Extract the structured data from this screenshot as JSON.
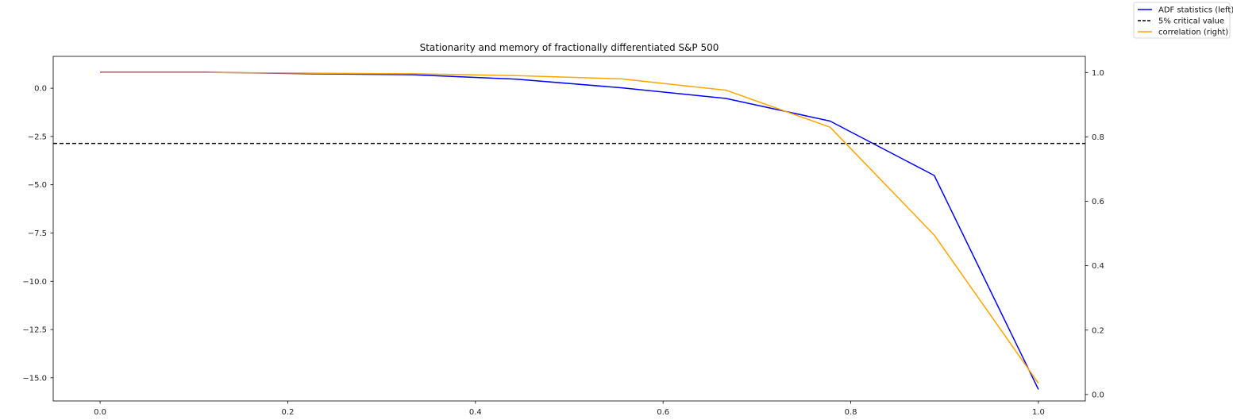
{
  "chart_data": {
    "type": "line",
    "title": "Stationarity and memory of fractionally differentiated S&P 500",
    "x": [
      0.0,
      0.111,
      0.222,
      0.333,
      0.444,
      0.556,
      0.667,
      0.778,
      0.889,
      1.0
    ],
    "xlim": [
      -0.05,
      1.05
    ],
    "xticks": [
      0.0,
      0.2,
      0.4,
      0.6,
      0.8,
      1.0
    ],
    "xtick_labels": [
      "0.0",
      "0.2",
      "0.4",
      "0.6",
      "0.8",
      "1.0"
    ],
    "ylim_left": [
      -16.2,
      1.65
    ],
    "yticks_left": [
      0.0,
      -2.5,
      -5.0,
      -7.5,
      -10.0,
      -12.5,
      -15.0
    ],
    "ytick_labels_left": [
      "0.0",
      "−2.5",
      "−5.0",
      "−7.5",
      "−10.0",
      "−12.5",
      "−15.0"
    ],
    "ylim_right": [
      -0.02,
      1.05
    ],
    "yticks_right": [
      0.0,
      0.2,
      0.4,
      0.6,
      0.8,
      1.0
    ],
    "ytick_labels_right": [
      "0.0",
      "0.2",
      "0.4",
      "0.6",
      "0.8",
      "1.0"
    ],
    "grid": false,
    "legend_position": "top-right (outside axes)",
    "series": [
      {
        "name": "ADF statistics (left)",
        "axis": "left",
        "color": "#0000ff",
        "style": "solid",
        "values": [
          0.83,
          0.83,
          0.75,
          0.7,
          0.47,
          0.02,
          -0.53,
          -1.7,
          -4.52,
          -15.6
        ]
      },
      {
        "name": "5% critical value",
        "axis": "left",
        "color": "#000000",
        "style": "dashed",
        "constant": -2.86
      },
      {
        "name": "correlation (right)",
        "axis": "right",
        "color": "#ffa500",
        "style": "solid",
        "values": [
          1.0,
          1.0,
          0.998,
          0.996,
          0.99,
          0.98,
          0.945,
          0.83,
          0.495,
          0.035
        ]
      }
    ]
  }
}
